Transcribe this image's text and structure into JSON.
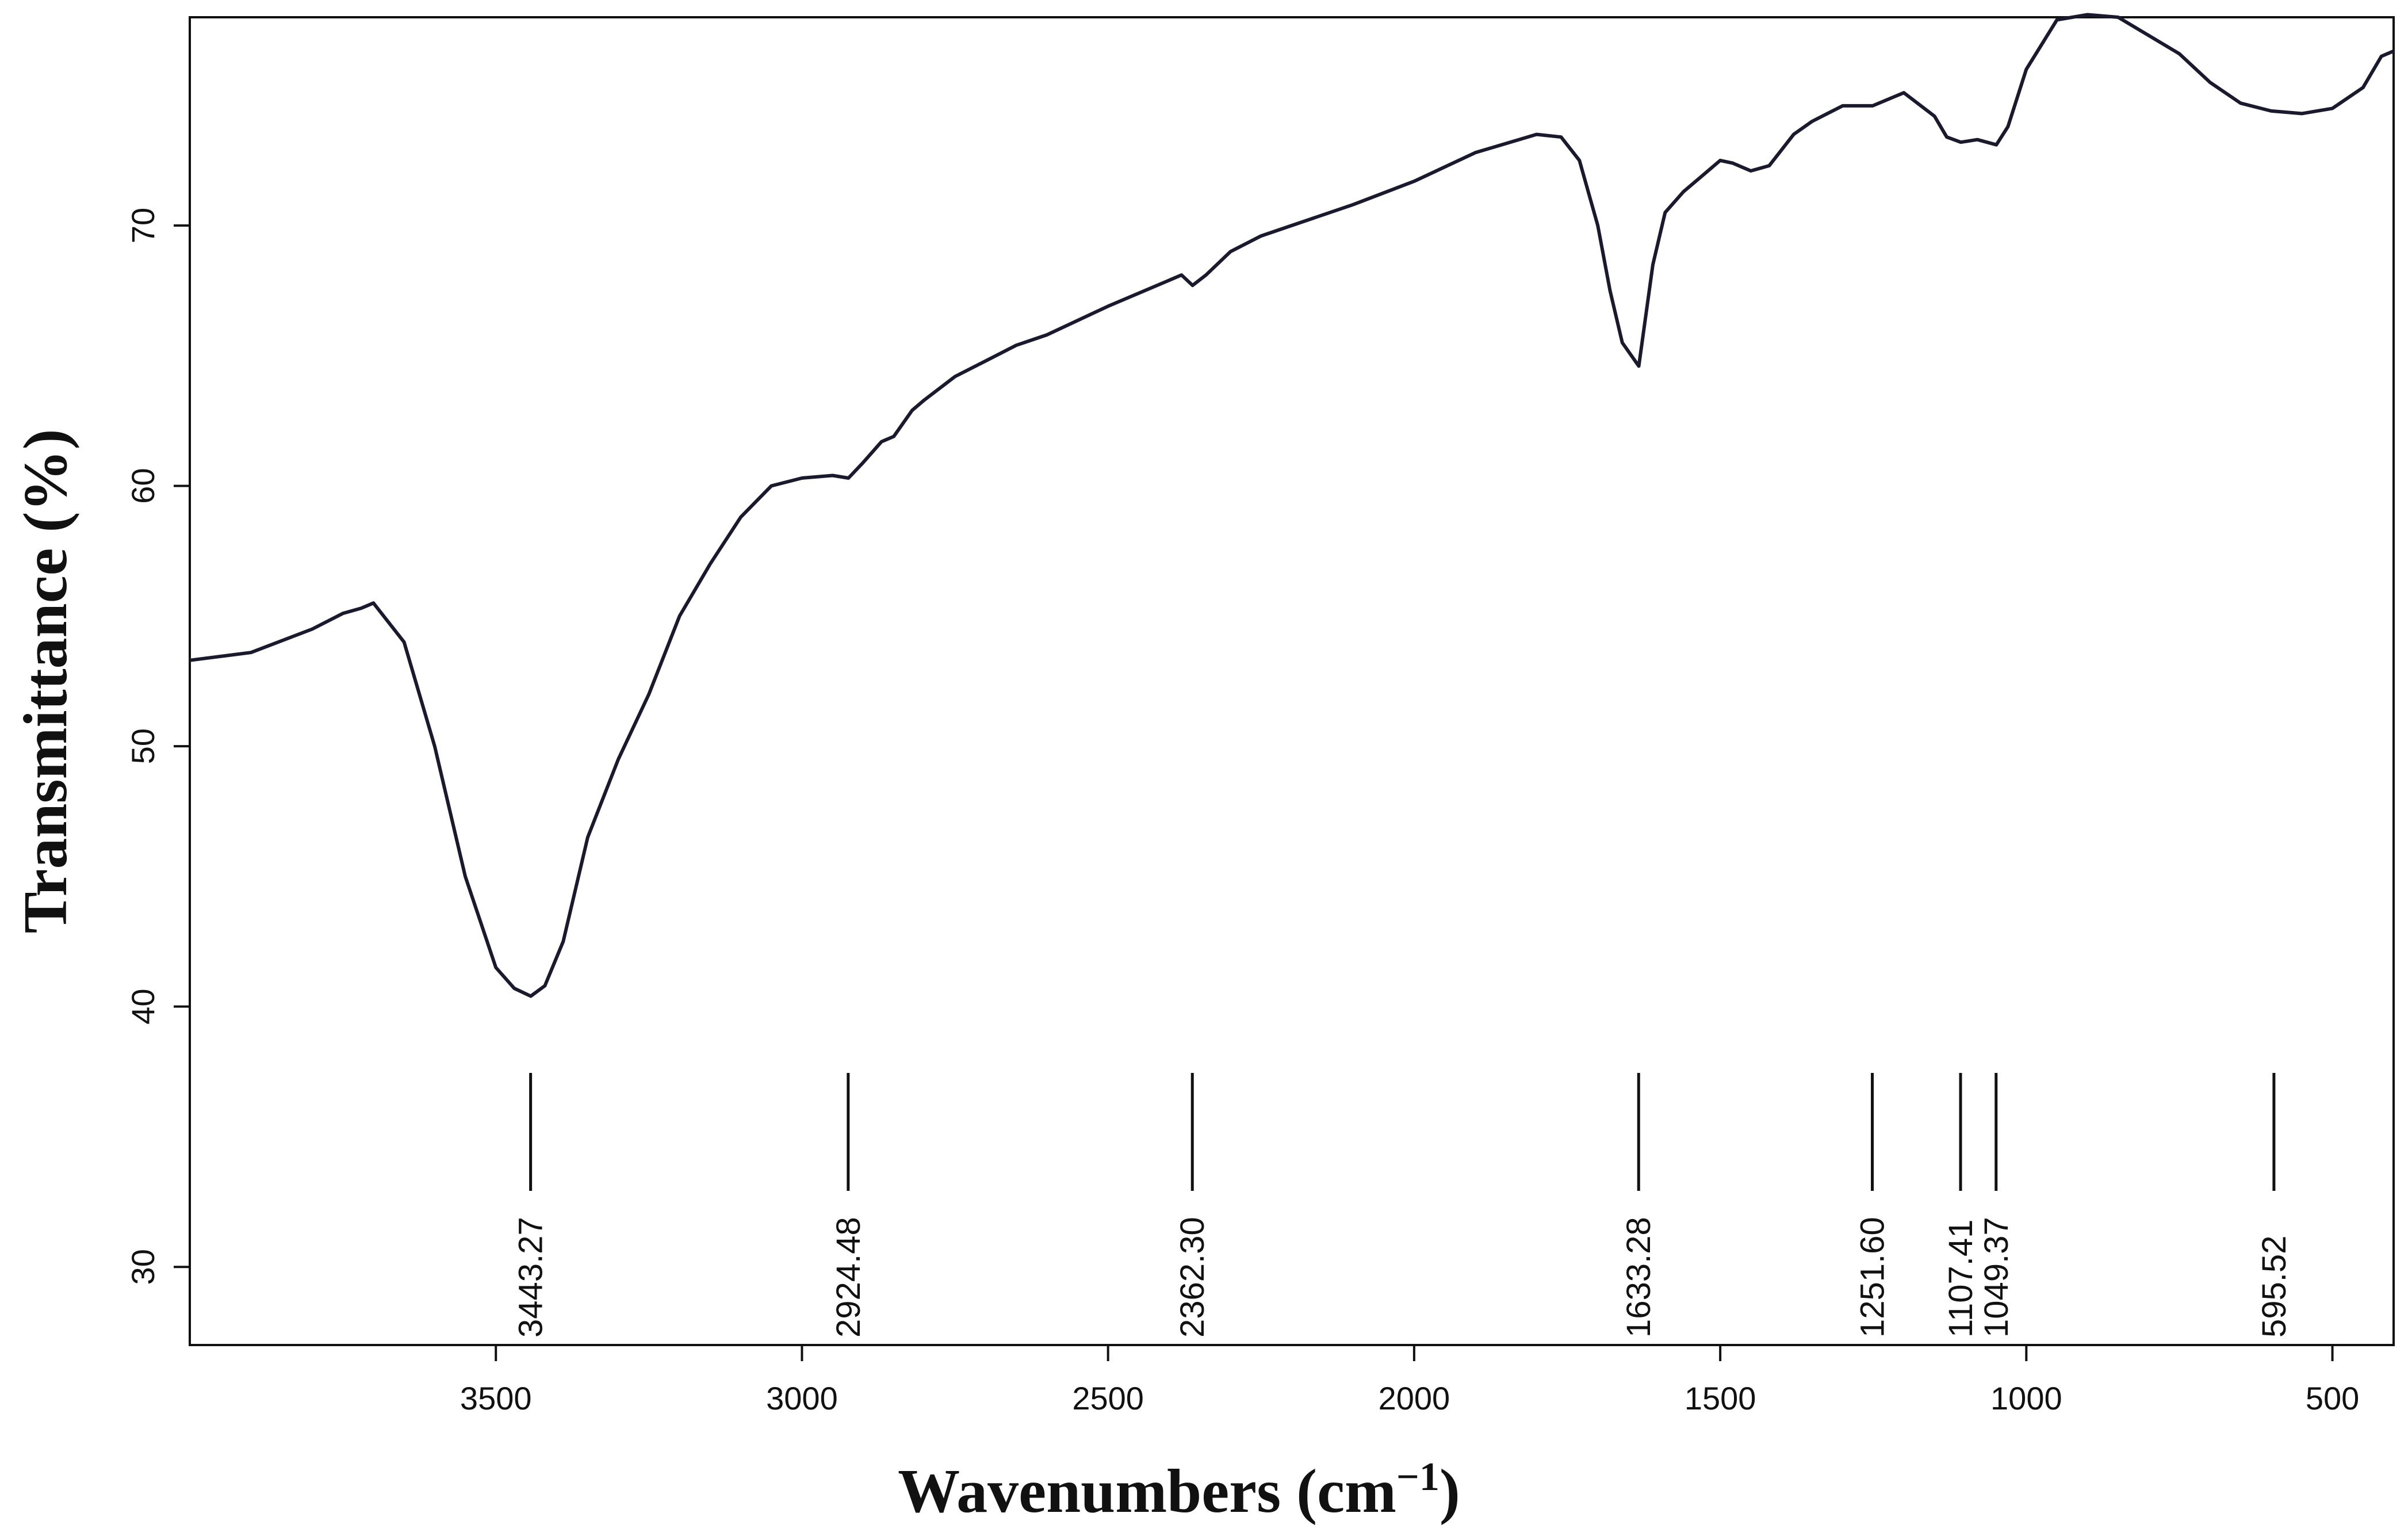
{
  "chart_data": {
    "type": "line",
    "title": "",
    "xlabel": "Wavenumbers (cm",
    "xlabel_sup": "−1",
    "xlabel_close": ")",
    "ylabel": "Transmittance (%)",
    "x_reversed": true,
    "xlim": [
      4000,
      400
    ],
    "ylim": [
      27,
      78
    ],
    "grid": false,
    "legend": "none",
    "line_color": "#1a1a2e",
    "xticks": [
      3500,
      3000,
      2500,
      2000,
      1500,
      1000,
      500
    ],
    "xtick_labels": [
      "3500",
      "3000",
      "2500",
      "2000",
      "1500",
      "1000",
      "500"
    ],
    "yticks": [
      30,
      40,
      50,
      60,
      70
    ],
    "ytick_labels": [
      "30",
      "40",
      "50",
      "60",
      "70"
    ],
    "peaks": [
      {
        "x": 3443.27,
        "label": "3443.27"
      },
      {
        "x": 2924.48,
        "label": "2924.48"
      },
      {
        "x": 2362.3,
        "label": "2362.30"
      },
      {
        "x": 1633.28,
        "label": "1633.28"
      },
      {
        "x": 1251.6,
        "label": "1251.60"
      },
      {
        "x": 1107.41,
        "label": "1107.41"
      },
      {
        "x": 1049.37,
        "label": "1049.37"
      },
      {
        "x": 595.52,
        "label": "595.52"
      }
    ],
    "series": [
      {
        "x": [
          4000,
          3900,
          3800,
          3750,
          3720,
          3700,
          3650,
          3600,
          3550,
          3500,
          3470,
          3443,
          3420,
          3390,
          3350,
          3300,
          3250,
          3200,
          3150,
          3100,
          3050,
          3000,
          2950,
          2924,
          2900,
          2870,
          2850,
          2820,
          2800,
          2750,
          2700,
          2650,
          2600,
          2500,
          2400,
          2380,
          2362,
          2340,
          2300,
          2250,
          2200,
          2100,
          2000,
          1900,
          1800,
          1760,
          1730,
          1700,
          1680,
          1660,
          1633,
          1610,
          1590,
          1560,
          1530,
          1500,
          1480,
          1450,
          1420,
          1380,
          1350,
          1300,
          1251,
          1200,
          1150,
          1130,
          1107,
          1080,
          1049,
          1030,
          1000,
          950,
          900,
          850,
          800,
          750,
          700,
          650,
          600,
          550,
          500,
          450,
          420,
          400
        ],
        "y": [
          53.3,
          53.6,
          54.5,
          55.1,
          55.3,
          55.5,
          54.0,
          50.0,
          45.0,
          41.5,
          40.7,
          40.4,
          40.8,
          42.5,
          46.5,
          49.5,
          52.0,
          55.0,
          57.0,
          58.8,
          60.0,
          60.3,
          60.4,
          60.3,
          60.9,
          61.7,
          61.9,
          62.9,
          63.3,
          64.2,
          64.8,
          65.4,
          65.8,
          66.9,
          67.9,
          68.1,
          67.7,
          68.1,
          69.0,
          69.6,
          70.0,
          70.8,
          71.7,
          72.8,
          73.5,
          73.4,
          72.5,
          70.0,
          67.5,
          65.5,
          64.6,
          68.5,
          70.5,
          71.3,
          71.9,
          72.5,
          72.4,
          72.1,
          72.3,
          73.5,
          74.0,
          74.6,
          74.6,
          75.1,
          74.2,
          73.4,
          73.2,
          73.3,
          73.1,
          73.8,
          76.0,
          77.9,
          78.1,
          78.0,
          77.3,
          76.6,
          75.5,
          74.7,
          74.4,
          74.3,
          74.5,
          75.3,
          76.5,
          76.7
        ]
      }
    ]
  }
}
